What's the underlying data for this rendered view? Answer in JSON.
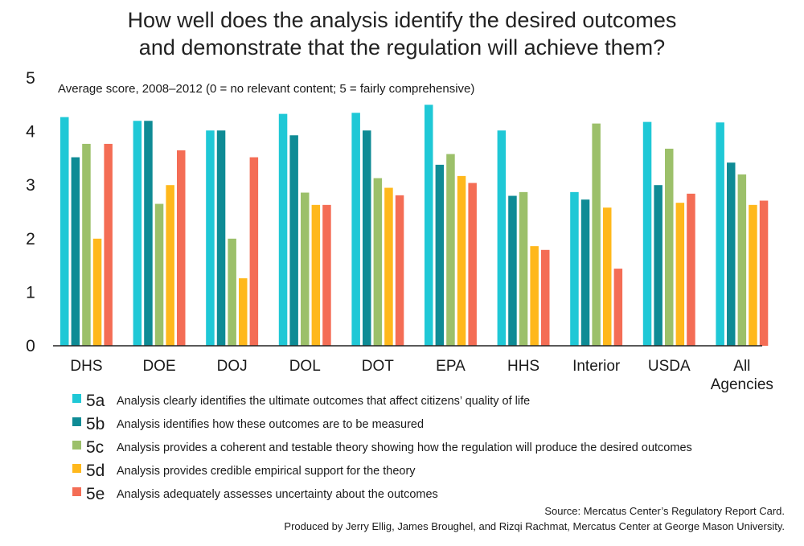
{
  "chart_data": {
    "type": "bar",
    "title": [
      "How well does the analysis identify the desired outcomes",
      "and demonstrate that the regulation will achieve them?"
    ],
    "subtitle": "Average score, 2008–2012 (0 = no relevant content; 5 = fairly comprehensive)",
    "categories": [
      [
        "DHS"
      ],
      [
        "DOE"
      ],
      [
        "DOJ"
      ],
      [
        "DOL"
      ],
      [
        "DOT"
      ],
      [
        "EPA"
      ],
      [
        "HHS"
      ],
      [
        "Interior"
      ],
      [
        "USDA"
      ],
      [
        "All",
        "Agencies"
      ]
    ],
    "ylim": [
      0,
      5
    ],
    "yticks": [
      "0",
      "1",
      "2",
      "3",
      "4",
      "5"
    ],
    "grid": false,
    "series": [
      {
        "name": "5a",
        "color": "#1fc8d6",
        "values": [
          4.27,
          4.2,
          4.02,
          4.33,
          4.35,
          4.5,
          4.02,
          2.87,
          4.18,
          4.17
        ]
      },
      {
        "name": "5b",
        "color": "#0e8b95",
        "values": [
          3.52,
          4.2,
          4.02,
          3.93,
          4.02,
          3.38,
          2.8,
          2.73,
          3.0,
          3.42
        ]
      },
      {
        "name": "5c",
        "color": "#9cc06a",
        "values": [
          3.77,
          2.65,
          2.0,
          2.86,
          3.13,
          3.58,
          2.87,
          4.15,
          3.68,
          3.2
        ]
      },
      {
        "name": "5d",
        "color": "#ffb81c",
        "values": [
          2.0,
          3.0,
          1.26,
          2.63,
          2.95,
          3.17,
          1.86,
          2.58,
          2.67,
          2.63
        ]
      },
      {
        "name": "5e",
        "color": "#f46d55",
        "values": [
          3.77,
          3.65,
          3.52,
          2.63,
          2.81,
          3.04,
          1.79,
          1.44,
          2.84,
          2.71
        ]
      }
    ]
  },
  "legend": [
    {
      "code": "5a",
      "text": "Analysis clearly identifies the ultimate outcomes that affect citizens’ quality of life",
      "color": "#1fc8d6"
    },
    {
      "code": "5b",
      "text": "Analysis identifies how these outcomes are to be measured",
      "color": "#0e8b95"
    },
    {
      "code": "5c",
      "text": "Analysis provides a coherent and testable theory showing how the regulation will produce the desired outcomes",
      "color": "#9cc06a"
    },
    {
      "code": "5d",
      "text": "Analysis provides credible empirical support for the theory",
      "color": "#ffb81c"
    },
    {
      "code": "5e",
      "text": "Analysis adequately assesses uncertainty about the outcomes",
      "color": "#f46d55"
    }
  ],
  "source": {
    "line1": "Source: Mercatus Center’s Regulatory Report Card.",
    "line2": "Produced by Jerry Ellig, James Broughel, and Rizqi Rachmat, Mercatus Center at George Mason University."
  }
}
